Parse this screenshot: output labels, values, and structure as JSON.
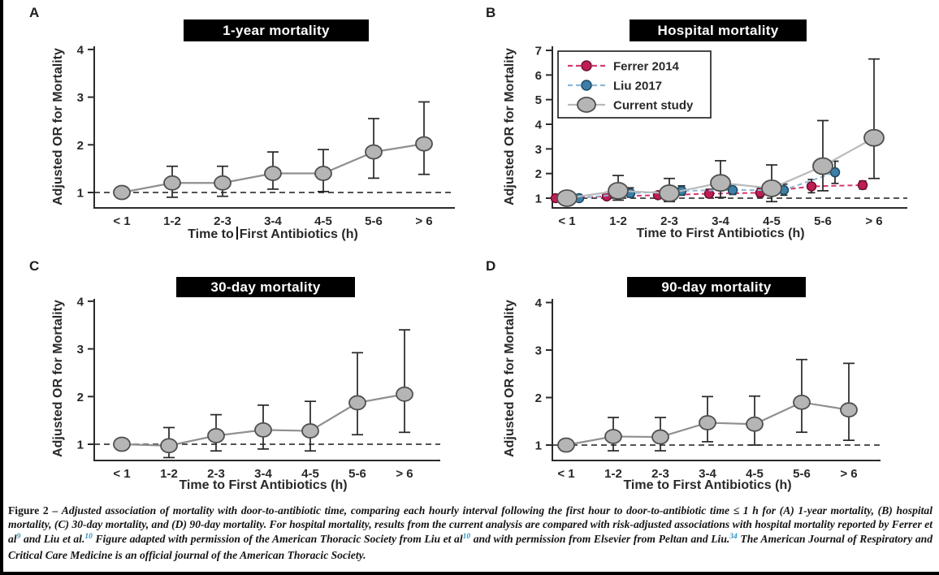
{
  "figure": {
    "caption": {
      "segments": [
        {
          "style": "lead",
          "text": "Figure 2 – "
        },
        {
          "style": "body",
          "text": "Adjusted association of mortality with door-to-antibiotic time, comparing each hourly interval following the first hour to door-to-antibiotic time ≤ 1 h for (A) 1-year mortality, (B) hospital mortality, (C) 30-day mortality, and (D) 90-day mortality. For hospital mortality, results from the current analysis are compared with risk-adjusted associations with hospital mortality reported by Ferrer et al"
        },
        {
          "style": "ref",
          "text": "9"
        },
        {
          "style": "body",
          "text": " and Liu et al."
        },
        {
          "style": "ref",
          "text": "10"
        },
        {
          "style": "body",
          "text": " Figure adapted with permission of the American Thoracic Society from Liu et al"
        },
        {
          "style": "ref",
          "text": "10"
        },
        {
          "style": "body",
          "text": " and with permission from Elsevier from Peltan and Liu."
        },
        {
          "style": "ref",
          "text": "34"
        },
        {
          "style": "body",
          "text": " The American Journal of Respiratory and Critical Care Medicine is an official journal of the American Thoracic Society."
        }
      ]
    },
    "colors": {
      "title_bar_bg": "#000000",
      "title_bar_text": "#ffffff",
      "reference_superscript": "#2e93c4",
      "ferrer": "#be1e54",
      "liu": "#3d7fa6",
      "current_fill": "#b5b5b5"
    }
  },
  "chart_data": [
    {
      "panel": "A",
      "type": "line",
      "title": "1-year mortality",
      "ylabel": "Adjusted OR for Mortality",
      "xlabel_parts": {
        "before_cursor": "Time to",
        "after_cursor": "First Antibiotics (h)"
      },
      "categories": [
        "< 1",
        "1-2",
        "2-3",
        "3-4",
        "4-5",
        "5-6",
        "> 6"
      ],
      "yticks": [
        1,
        2,
        3,
        4
      ],
      "ylim": [
        1,
        4
      ],
      "reference_line": 1,
      "grid": false,
      "series": [
        {
          "name": "Current study",
          "marker": "large",
          "x_offset": 0,
          "fill": "#b5b5b5",
          "stroke": "#4f4f4f",
          "line_color": "#8f8f8f",
          "line_style": "solid",
          "or": [
            1.0,
            1.2,
            1.2,
            1.4,
            1.4,
            1.85,
            2.02
          ],
          "ci_low": [
            null,
            0.9,
            0.92,
            1.07,
            1.02,
            1.3,
            1.38
          ],
          "ci_high": [
            null,
            1.55,
            1.55,
            1.85,
            1.9,
            2.55,
            2.9
          ]
        }
      ]
    },
    {
      "panel": "B",
      "type": "line",
      "title": "Hospital mortality",
      "ylabel": "Adjusted OR for Mortality",
      "xlabel": "Time to First Antibiotics (h)",
      "categories": [
        "< 1",
        "1-2",
        "2-3",
        "3-4",
        "4-5",
        "5-6",
        "> 6"
      ],
      "yticks": [
        1,
        2,
        3,
        4,
        5,
        6,
        7
      ],
      "ylim": [
        1,
        7
      ],
      "reference_line": 1,
      "grid": false,
      "show_legend": true,
      "legend_position": "upper-left",
      "series": [
        {
          "name": "Ferrer 2014",
          "marker": "small",
          "x_offset": -14,
          "fill": "#be1e54",
          "stroke": "#6f1031",
          "line_color": "#d63a6e",
          "line_style": "dashed",
          "or": [
            1.0,
            1.07,
            1.12,
            1.18,
            1.22,
            1.48,
            1.53
          ],
          "ci_low": [
            null,
            0.98,
            1.02,
            1.03,
            1.06,
            1.22,
            1.37
          ],
          "ci_high": [
            null,
            1.17,
            1.24,
            1.36,
            1.41,
            1.76,
            1.7
          ]
        },
        {
          "name": "Liu 2017",
          "marker": "small",
          "x_offset": 15,
          "fill": "#3d7fa6",
          "stroke": "#1d4962",
          "line_color": "#8cb8d6",
          "line_style": "dashed",
          "or": [
            1.0,
            1.2,
            1.3,
            1.33,
            1.33,
            2.05,
            null
          ],
          "ci_low": [
            null,
            1.04,
            1.12,
            1.15,
            1.12,
            1.6,
            null
          ],
          "ci_high": [
            null,
            1.42,
            1.5,
            1.55,
            1.57,
            2.5,
            null
          ]
        },
        {
          "name": "Current study",
          "marker": "large",
          "x_offset": 0,
          "fill": "#b5b5b5",
          "stroke": "#4f4f4f",
          "line_color": "#b7babc",
          "line_style": "solid",
          "or": [
            1.0,
            1.3,
            1.2,
            1.62,
            1.4,
            2.3,
            3.45
          ],
          "ci_low": [
            null,
            0.92,
            0.86,
            1.03,
            0.86,
            1.3,
            1.8
          ],
          "ci_high": [
            null,
            1.92,
            1.8,
            2.52,
            2.35,
            4.15,
            6.65
          ]
        }
      ]
    },
    {
      "panel": "C",
      "type": "line",
      "title": "30-day mortality",
      "ylabel": "Adjusted OR for Mortality",
      "xlabel": "Time to First Antibiotics (h)",
      "categories": [
        "< 1",
        "1-2",
        "2-3",
        "3-4",
        "4-5",
        "5-6",
        "> 6"
      ],
      "yticks": [
        1,
        2,
        3,
        4
      ],
      "ylim": [
        1,
        4
      ],
      "reference_line": 1,
      "grid": false,
      "series": [
        {
          "name": "Current study",
          "marker": "large",
          "x_offset": 0,
          "fill": "#b5b5b5",
          "stroke": "#4f4f4f",
          "line_color": "#8f8f8f",
          "line_style": "solid",
          "or": [
            1.0,
            0.97,
            1.18,
            1.3,
            1.28,
            1.87,
            2.05
          ],
          "ci_low": [
            null,
            0.72,
            0.86,
            0.9,
            0.86,
            1.2,
            1.25
          ],
          "ci_high": [
            null,
            1.35,
            1.62,
            1.82,
            1.9,
            2.92,
            3.4
          ]
        }
      ]
    },
    {
      "panel": "D",
      "type": "line",
      "title": "90-day mortality",
      "ylabel": "Adjusted OR for Mortality",
      "xlabel": "Time to First Antibiotics (h)",
      "categories": [
        "< 1",
        "1-2",
        "2-3",
        "3-4",
        "4-5",
        "5-6",
        "> 6"
      ],
      "yticks": [
        1,
        2,
        3,
        4
      ],
      "ylim": [
        1,
        4
      ],
      "reference_line": 1,
      "grid": false,
      "series": [
        {
          "name": "Current study",
          "marker": "large",
          "x_offset": 0,
          "fill": "#b5b5b5",
          "stroke": "#4f4f4f",
          "line_color": "#8f8f8f",
          "line_style": "solid",
          "or": [
            1.0,
            1.18,
            1.17,
            1.47,
            1.44,
            1.9,
            1.74
          ],
          "ci_low": [
            null,
            0.88,
            0.88,
            1.07,
            1.0,
            1.27,
            1.1
          ],
          "ci_high": [
            null,
            1.58,
            1.58,
            2.02,
            2.03,
            2.8,
            2.72
          ]
        }
      ]
    }
  ]
}
